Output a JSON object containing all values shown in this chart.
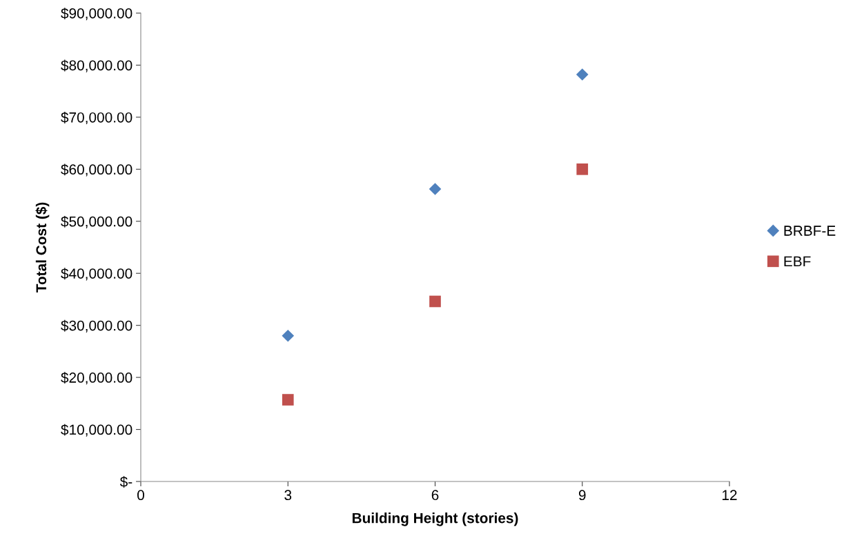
{
  "chart_data": {
    "type": "scatter",
    "xlabel": "Building Height (stories)",
    "ylabel": "Total Cost ($)",
    "x": [
      3,
      6,
      9
    ],
    "series": [
      {
        "name": "BRBF-E",
        "color": "#4f81bd",
        "marker": "diamond",
        "values": [
          28000,
          56200,
          78200
        ]
      },
      {
        "name": "EBF",
        "color": "#c0504d",
        "marker": "square",
        "values": [
          15700,
          34600,
          60000
        ]
      }
    ],
    "xlim": [
      0,
      12
    ],
    "xticks": [
      0,
      3,
      6,
      9,
      12
    ],
    "ylim": [
      0,
      90000
    ],
    "yticks": [
      {
        "value": 0,
        "label": "$-"
      },
      {
        "value": 10000,
        "label": "$10,000.00"
      },
      {
        "value": 20000,
        "label": "$20,000.00"
      },
      {
        "value": 30000,
        "label": "$30,000.00"
      },
      {
        "value": 40000,
        "label": "$40,000.00"
      },
      {
        "value": 50000,
        "label": "$50,000.00"
      },
      {
        "value": 60000,
        "label": "$60,000.00"
      },
      {
        "value": 70000,
        "label": "$70,000.00"
      },
      {
        "value": 80000,
        "label": "$80,000.00"
      },
      {
        "value": 90000,
        "label": "$90,000.00"
      }
    ],
    "grid": false,
    "legend": "right"
  }
}
